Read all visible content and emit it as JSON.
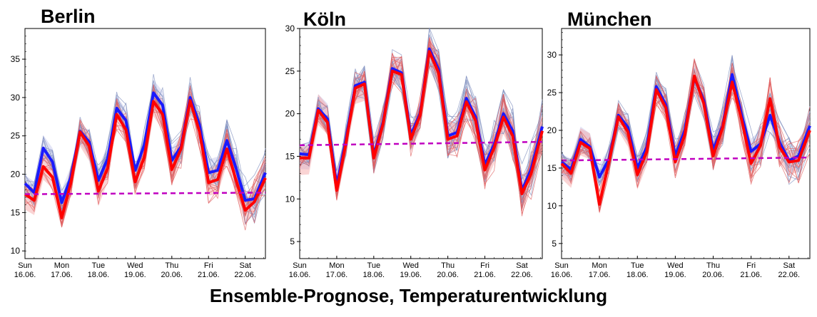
{
  "main_title": "Ensemble-Prognose, Temperaturentwicklung",
  "x_ticks": [
    {
      "day": "Sun",
      "date": "16.06."
    },
    {
      "day": "Mon",
      "date": "17.06."
    },
    {
      "day": "Tue",
      "date": "18.06."
    },
    {
      "day": "Wed",
      "date": "19.06."
    },
    {
      "day": "Thu",
      "date": "20.06."
    },
    {
      "day": "Fri",
      "date": "21.06."
    },
    {
      "day": "Sat",
      "date": "22.06."
    }
  ],
  "colors": {
    "blue_members": "#7f8fbf",
    "blue_mean": "#1a1aff",
    "red_members": "#e06060",
    "red_mean": "#ff0000",
    "red_band": "#f4a0a0",
    "blue_band": "#c0c4ea",
    "climatology": "#c000c0"
  },
  "chart_data": [
    {
      "type": "line",
      "title": "Berlin",
      "ylim": [
        9,
        39
      ],
      "yticks": [
        10,
        15,
        20,
        25,
        30,
        35
      ],
      "x_range": [
        0,
        6.55
      ],
      "series": [
        {
          "values": [
            [
              0,
              18.8
            ],
            [
              0.25,
              17.6
            ],
            [
              0.5,
              23.4
            ],
            [
              0.75,
              21.6
            ],
            [
              1.0,
              16.3
            ],
            [
              1.25,
              19.6
            ],
            [
              1.5,
              25.6
            ],
            [
              1.75,
              24.2
            ],
            [
              2.0,
              19.2
            ],
            [
              2.25,
              22.0
            ],
            [
              2.5,
              28.6
            ],
            [
              2.75,
              27.0
            ],
            [
              3.0,
              20.5
            ],
            [
              3.25,
              23.8
            ],
            [
              3.5,
              30.6
            ],
            [
              3.75,
              29.0
            ],
            [
              4.0,
              21.8
            ],
            [
              4.25,
              23.6
            ],
            [
              4.5,
              30.0
            ],
            [
              4.75,
              26.5
            ],
            [
              5.0,
              20.2
            ],
            [
              5.25,
              20.5
            ],
            [
              5.5,
              24.4
            ],
            [
              5.75,
              20.8
            ],
            [
              6.0,
              16.6
            ],
            [
              6.25,
              16.8
            ],
            [
              6.55,
              20.2
            ]
          ]
        },
        {
          "values": [
            [
              0,
              17.4
            ],
            [
              0.25,
              16.6
            ],
            [
              0.5,
              21.0
            ],
            [
              0.75,
              19.6
            ],
            [
              1.0,
              14.3
            ],
            [
              1.25,
              18.9
            ],
            [
              1.5,
              25.5
            ],
            [
              1.75,
              23.7
            ],
            [
              2.0,
              17.8
            ],
            [
              2.25,
              20.8
            ],
            [
              2.5,
              27.8
            ],
            [
              2.75,
              25.8
            ],
            [
              3.0,
              19.0
            ],
            [
              3.25,
              22.2
            ],
            [
              3.5,
              29.5
            ],
            [
              3.75,
              27.8
            ],
            [
              4.0,
              20.6
            ],
            [
              4.25,
              23.3
            ],
            [
              4.5,
              29.6
            ],
            [
              4.75,
              25.6
            ],
            [
              5.0,
              18.9
            ],
            [
              5.25,
              19.3
            ],
            [
              5.5,
              23.3
            ],
            [
              5.75,
              19.2
            ],
            [
              6.0,
              15.3
            ],
            [
              6.25,
              16.4
            ],
            [
              6.55,
              19.5
            ]
          ]
        },
        {
          "values": [
            [
              0,
              17.4
            ],
            [
              6.55,
              17.6
            ]
          ]
        }
      ]
    },
    {
      "type": "line",
      "title": "Köln",
      "ylim": [
        3,
        30
      ],
      "yticks": [
        5,
        10,
        15,
        20,
        25,
        30
      ],
      "x_range": [
        0,
        6.55
      ],
      "series": [
        {
          "values": [
            [
              0,
              15.3
            ],
            [
              0.25,
              15.2
            ],
            [
              0.5,
              20.6
            ],
            [
              0.75,
              19.4
            ],
            [
              1.0,
              11.6
            ],
            [
              1.25,
              17.0
            ],
            [
              1.5,
              23.3
            ],
            [
              1.75,
              23.7
            ],
            [
              2.0,
              15.1
            ],
            [
              2.25,
              19.0
            ],
            [
              2.5,
              25.3
            ],
            [
              2.75,
              24.8
            ],
            [
              3.0,
              17.5
            ],
            [
              3.25,
              20.0
            ],
            [
              3.5,
              27.6
            ],
            [
              3.75,
              25.2
            ],
            [
              4.0,
              17.4
            ],
            [
              4.25,
              17.8
            ],
            [
              4.5,
              21.8
            ],
            [
              4.75,
              19.6
            ],
            [
              5.0,
              14.0
            ],
            [
              5.25,
              16.4
            ],
            [
              5.5,
              20.0
            ],
            [
              5.75,
              18.0
            ],
            [
              6.0,
              11.0
            ],
            [
              6.25,
              13.5
            ],
            [
              6.55,
              18.5
            ]
          ]
        },
        {
          "values": [
            [
              0,
              14.8
            ],
            [
              0.25,
              14.8
            ],
            [
              0.5,
              20.4
            ],
            [
              0.75,
              19.0
            ],
            [
              1.0,
              11.0
            ],
            [
              1.25,
              16.6
            ],
            [
              1.5,
              23.0
            ],
            [
              1.75,
              23.5
            ],
            [
              2.0,
              14.8
            ],
            [
              2.25,
              18.8
            ],
            [
              2.5,
              25.0
            ],
            [
              2.75,
              24.6
            ],
            [
              3.0,
              17.0
            ],
            [
              3.25,
              19.8
            ],
            [
              3.5,
              27.3
            ],
            [
              3.75,
              24.8
            ],
            [
              4.0,
              17.0
            ],
            [
              4.25,
              17.4
            ],
            [
              4.5,
              21.4
            ],
            [
              4.75,
              19.2
            ],
            [
              5.0,
              13.4
            ],
            [
              5.25,
              16.0
            ],
            [
              5.5,
              19.6
            ],
            [
              5.75,
              17.4
            ],
            [
              6.0,
              10.6
            ],
            [
              6.25,
              13.0
            ],
            [
              6.55,
              18.0
            ]
          ]
        },
        {
          "values": [
            [
              0,
              16.3
            ],
            [
              6.55,
              16.7
            ]
          ]
        }
      ]
    },
    {
      "type": "line",
      "title": "München",
      "ylim": [
        3,
        33.5
      ],
      "yticks": [
        5,
        10,
        15,
        20,
        25,
        30
      ],
      "x_range": [
        0,
        6.55
      ],
      "series": [
        {
          "values": [
            [
              0,
              15.8
            ],
            [
              0.25,
              14.8
            ],
            [
              0.5,
              18.8
            ],
            [
              0.75,
              17.8
            ],
            [
              1.0,
              13.8
            ],
            [
              1.25,
              16.2
            ],
            [
              1.5,
              22.0
            ],
            [
              1.75,
              20.4
            ],
            [
              2.0,
              15.0
            ],
            [
              2.25,
              17.8
            ],
            [
              2.5,
              25.8
            ],
            [
              2.75,
              23.4
            ],
            [
              3.0,
              16.6
            ],
            [
              3.25,
              20.0
            ],
            [
              3.5,
              27.0
            ],
            [
              3.75,
              24.0
            ],
            [
              4.0,
              17.4
            ],
            [
              4.25,
              20.6
            ],
            [
              4.5,
              27.4
            ],
            [
              4.75,
              22.0
            ],
            [
              5.0,
              17.2
            ],
            [
              5.25,
              18.2
            ],
            [
              5.5,
              22.0
            ],
            [
              5.75,
              18.4
            ],
            [
              6.0,
              16.0
            ],
            [
              6.25,
              16.6
            ],
            [
              6.55,
              20.6
            ]
          ]
        },
        {
          "values": [
            [
              0,
              15.6
            ],
            [
              0.25,
              14.3
            ],
            [
              0.5,
              18.4
            ],
            [
              0.75,
              17.6
            ],
            [
              1.0,
              10.2
            ],
            [
              1.25,
              15.8
            ],
            [
              1.5,
              21.8
            ],
            [
              1.75,
              19.8
            ],
            [
              2.0,
              14.1
            ],
            [
              2.25,
              17.2
            ],
            [
              2.5,
              25.4
            ],
            [
              2.75,
              23.0
            ],
            [
              3.0,
              15.8
            ],
            [
              3.25,
              19.4
            ],
            [
              3.5,
              27.2
            ],
            [
              3.75,
              23.6
            ],
            [
              4.0,
              16.6
            ],
            [
              4.25,
              20.4
            ],
            [
              4.5,
              26.4
            ],
            [
              4.75,
              21.4
            ],
            [
              5.0,
              15.6
            ],
            [
              5.25,
              18.0
            ],
            [
              5.5,
              24.2
            ],
            [
              5.75,
              17.8
            ],
            [
              6.0,
              15.8
            ],
            [
              6.25,
              16.0
            ],
            [
              6.55,
              20.0
            ]
          ]
        },
        {
          "values": [
            [
              0,
              16.0
            ],
            [
              6.55,
              16.4
            ]
          ]
        }
      ]
    }
  ]
}
